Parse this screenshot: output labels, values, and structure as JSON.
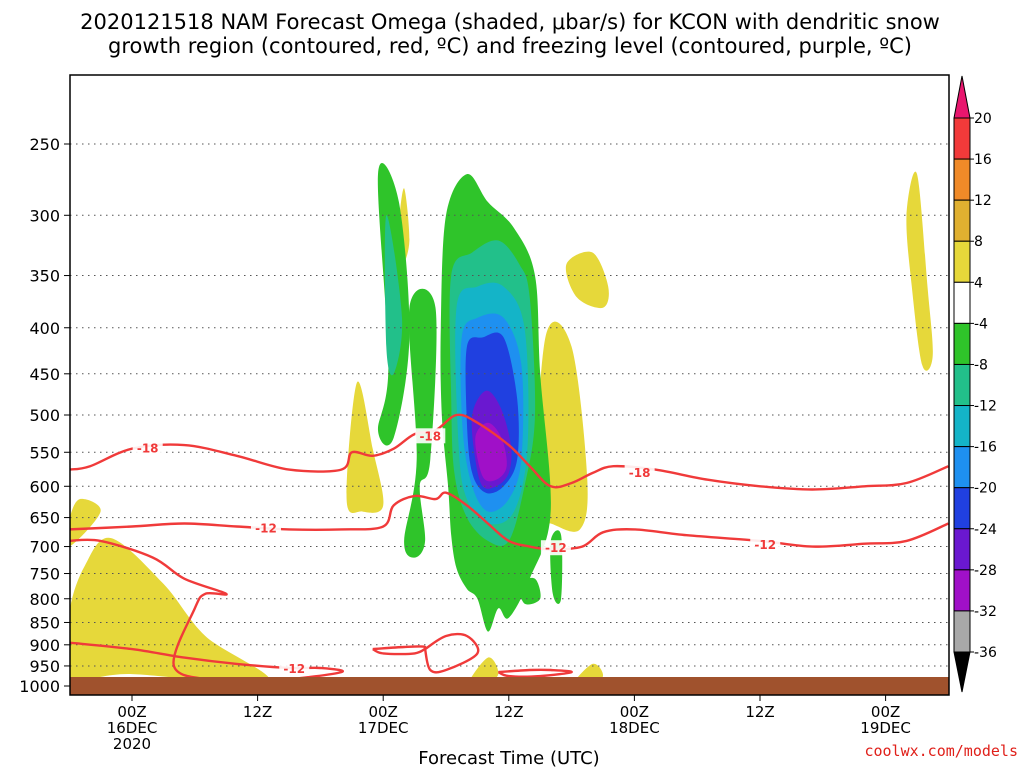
{
  "title": {
    "line1": "2020121518 NAM Forecast Omega (shaded, μbar/s) for KCON with dendritic snow",
    "line2": "growth region (contoured, red, ºC) and freezing level (contoured, purple, ºC)"
  },
  "credit": "coolwx.com/models",
  "chart_data": {
    "type": "heatmap",
    "title": "2020121518 NAM Forecast Omega (shaded, μbar/s) for KCON with dendritic snow growth region (contoured, red, ºC) and freezing level (contoured, purple, ºC)",
    "xlabel": "Forecast Time (UTC)",
    "ylabel": "",
    "y_scale": "log-pressure, inverted",
    "ylim": [
      1000,
      200
    ],
    "grid": true,
    "y_ticks": [
      250,
      300,
      350,
      400,
      450,
      500,
      550,
      600,
      650,
      700,
      750,
      800,
      850,
      900,
      950,
      1000
    ],
    "x_ticks": [
      {
        "hour": 0,
        "line1": "00Z",
        "line2": "16DEC",
        "line3": "2020"
      },
      {
        "hour": 12,
        "line1": "12Z",
        "line2": "",
        "line3": ""
      },
      {
        "hour": 24,
        "line1": "00Z",
        "line2": "17DEC",
        "line3": ""
      },
      {
        "hour": 36,
        "line1": "12Z",
        "line2": "",
        "line3": ""
      },
      {
        "hour": 48,
        "line1": "00Z",
        "line2": "18DEC",
        "line3": ""
      },
      {
        "hour": 60,
        "line1": "12Z",
        "line2": "",
        "line3": ""
      },
      {
        "hour": 72,
        "line1": "00Z",
        "line2": "19DEC",
        "line3": ""
      }
    ],
    "xlim_hours": [
      -6,
      78
    ],
    "colorbar": {
      "labels": [
        "20",
        "16",
        "12",
        "8",
        "4",
        "-4",
        "-8",
        "-12",
        "-16",
        "-20",
        "-24",
        "-28",
        "-32",
        "-36"
      ],
      "colors": [
        "#e8166e",
        "#f23a3a",
        "#f08a28",
        "#e0b030",
        "#e6d83a",
        "#ffffff",
        "#2fc42a",
        "#22c08a",
        "#14b4c8",
        "#1e90f0",
        "#2040e0",
        "#6a18d0",
        "#a010c8",
        "#a8a8a8",
        "#000000"
      ]
    },
    "omega_regions": [
      {
        "category": "4 to 8",
        "color": "#e6d83a",
        "points": [
          [
            -6,
            830
          ],
          [
            -4.5,
            735
          ],
          [
            -2,
            685
          ],
          [
            3,
            770
          ],
          [
            7,
            880
          ],
          [
            13,
            990
          ],
          [
            0,
            970
          ],
          [
            -6,
            975
          ]
        ]
      },
      {
        "category": "4 to 8",
        "color": "#e6d83a",
        "points": [
          [
            -6,
            655
          ],
          [
            -5,
            620
          ],
          [
            -3,
            640
          ],
          [
            -6,
            700
          ]
        ]
      },
      {
        "category": "4 to 8",
        "color": "#e6d83a",
        "points": [
          [
            20.5,
            620
          ],
          [
            21.5,
            460
          ],
          [
            23,
            545
          ],
          [
            24,
            630
          ],
          [
            22,
            640
          ]
        ]
      },
      {
        "category": "4 to 8",
        "color": "#e6d83a",
        "points": [
          [
            25.5,
            310
          ],
          [
            26,
            280
          ],
          [
            26.5,
            320
          ],
          [
            25.8,
            340
          ]
        ]
      },
      {
        "category": "4 to 8",
        "color": "#e6d83a",
        "points": [
          [
            41.5,
            340
          ],
          [
            44,
            330
          ],
          [
            45.5,
            360
          ],
          [
            45,
            380
          ],
          [
            42.5,
            370
          ]
        ]
      },
      {
        "category": "4 to 8",
        "color": "#e6d83a",
        "points": [
          [
            38.5,
            650
          ],
          [
            39.5,
            410
          ],
          [
            42,
            420
          ],
          [
            43.5,
            590
          ],
          [
            42.8,
            670
          ],
          [
            40,
            660
          ]
        ]
      },
      {
        "category": "4 to 8",
        "color": "#e6d83a",
        "points": [
          [
            74,
            300
          ],
          [
            75,
            270
          ],
          [
            76,
            360
          ],
          [
            76.5,
            430
          ],
          [
            75.5,
            440
          ],
          [
            74.5,
            360
          ]
        ]
      },
      {
        "category": "4 to 8",
        "color": "#e6d83a",
        "points": [
          [
            32,
            1000
          ],
          [
            34,
            930
          ],
          [
            35,
            970
          ],
          [
            33.5,
            1000
          ]
        ]
      },
      {
        "category": "4 to 8",
        "color": "#e6d83a",
        "points": [
          [
            42,
            1000
          ],
          [
            44,
            945
          ],
          [
            45,
            975
          ],
          [
            43.5,
            1000
          ]
        ]
      },
      {
        "category": "-4 to -8",
        "color": "#2fc42a",
        "points": [
          [
            23.5,
            270
          ],
          [
            25.5,
            290
          ],
          [
            26.5,
            410
          ],
          [
            25,
            530
          ],
          [
            23.5,
            520
          ],
          [
            24.5,
            440
          ]
        ]
      },
      {
        "category": "-4 to -8",
        "color": "#2fc42a",
        "points": [
          [
            26.5,
            380
          ],
          [
            29,
            380
          ],
          [
            28.5,
            560
          ],
          [
            27.5,
            600
          ],
          [
            28,
            690
          ],
          [
            27,
            720
          ],
          [
            26,
            690
          ],
          [
            27.2,
            560
          ]
        ]
      },
      {
        "category": "-4 to -8",
        "color": "#2fc42a",
        "points": [
          [
            30,
            300
          ],
          [
            32,
            270
          ],
          [
            34,
            290
          ],
          [
            36.5,
            310
          ],
          [
            38.5,
            350
          ],
          [
            39,
            450
          ],
          [
            40,
            640
          ],
          [
            38,
            760
          ],
          [
            36,
            840
          ],
          [
            35,
            820
          ],
          [
            34,
            870
          ],
          [
            33,
            800
          ],
          [
            32,
            780
          ],
          [
            31,
            740
          ],
          [
            30.5,
            680
          ],
          [
            30.2,
            600
          ],
          [
            29.6,
            500
          ],
          [
            29.5,
            400
          ]
        ]
      },
      {
        "category": "-4 to -8",
        "color": "#2fc42a",
        "points": [
          [
            37,
            770
          ],
          [
            38.5,
            760
          ],
          [
            39,
            800
          ],
          [
            37.5,
            810
          ]
        ]
      },
      {
        "category": "-4 to -8",
        "color": "#2fc42a",
        "points": [
          [
            40,
            690
          ],
          [
            41,
            680
          ],
          [
            41,
            800
          ],
          [
            40.2,
            790
          ]
        ]
      },
      {
        "category": "-4 to -12",
        "color": "#22c08a",
        "points": [
          [
            24.3,
            300
          ],
          [
            25.8,
            390
          ],
          [
            25,
            450
          ],
          [
            24.3,
            420
          ]
        ]
      },
      {
        "category": "-8 to -12",
        "color": "#22c08a",
        "points": [
          [
            30.5,
            350
          ],
          [
            32.5,
            330
          ],
          [
            35,
            320
          ],
          [
            37,
            340
          ],
          [
            38,
            370
          ],
          [
            38.5,
            500
          ],
          [
            37.5,
            600
          ],
          [
            36,
            690
          ],
          [
            34,
            690
          ],
          [
            32,
            650
          ],
          [
            30.8,
            580
          ],
          [
            30.5,
            480
          ]
        ]
      },
      {
        "category": "-12 to -16",
        "color": "#14b4c8",
        "points": [
          [
            31,
            380
          ],
          [
            33,
            360
          ],
          [
            35.5,
            360
          ],
          [
            37.5,
            400
          ],
          [
            37.8,
            540
          ],
          [
            36.5,
            640
          ],
          [
            34,
            660
          ],
          [
            32,
            620
          ],
          [
            31.2,
            540
          ]
        ]
      },
      {
        "category": "-16 to -20",
        "color": "#1e90f0",
        "points": [
          [
            31.5,
            410
          ],
          [
            33,
            390
          ],
          [
            35.5,
            390
          ],
          [
            37.2,
            440
          ],
          [
            37.2,
            560
          ],
          [
            36,
            620
          ],
          [
            34,
            640
          ],
          [
            32.5,
            600
          ],
          [
            31.6,
            520
          ]
        ]
      },
      {
        "category": "-20 to -24",
        "color": "#2040e0",
        "points": [
          [
            32,
            420
          ],
          [
            33.5,
            410
          ],
          [
            35.5,
            410
          ],
          [
            36.8,
            480
          ],
          [
            36.8,
            560
          ],
          [
            35.5,
            600
          ],
          [
            33.8,
            610
          ],
          [
            32.5,
            580
          ],
          [
            32,
            510
          ]
        ]
      },
      {
        "category": "-24 to -28",
        "color": "#6a18d0",
        "points": [
          [
            32.5,
            500
          ],
          [
            33.8,
            470
          ],
          [
            35.2,
            490
          ],
          [
            36.2,
            540
          ],
          [
            36,
            580
          ],
          [
            34.8,
            600
          ],
          [
            33.5,
            600
          ],
          [
            32.8,
            560
          ]
        ]
      },
      {
        "category": "-28 to -32",
        "color": "#a010c8",
        "points": [
          [
            32.8,
            530
          ],
          [
            34,
            510
          ],
          [
            35.3,
            530
          ],
          [
            35.8,
            570
          ],
          [
            34.8,
            590
          ],
          [
            33.5,
            585
          ]
        ]
      }
    ],
    "dgz_contours": [
      {
        "label": "-18",
        "points": [
          [
            -6,
            575
          ],
          [
            -4,
            570
          ],
          [
            0,
            545
          ],
          [
            5,
            540
          ],
          [
            10,
            555
          ],
          [
            15,
            575
          ],
          [
            20,
            575
          ],
          [
            21,
            550
          ],
          [
            23,
            555
          ],
          [
            25,
            545
          ],
          [
            27,
            525
          ],
          [
            29,
            520
          ],
          [
            31,
            500
          ],
          [
            33,
            510
          ],
          [
            36,
            540
          ],
          [
            38,
            570
          ],
          [
            40,
            600
          ],
          [
            42,
            595
          ],
          [
            44,
            580
          ],
          [
            46,
            570
          ],
          [
            50,
            575
          ],
          [
            55,
            590
          ],
          [
            60,
            600
          ],
          [
            65,
            605
          ],
          [
            70,
            600
          ],
          [
            74,
            595
          ],
          [
            78,
            570
          ]
        ]
      },
      {
        "label": "-12",
        "points": [
          [
            -6,
            670
          ],
          [
            0,
            665
          ],
          [
            5,
            660
          ],
          [
            10,
            665
          ],
          [
            15,
            670
          ],
          [
            20,
            670
          ],
          [
            24,
            665
          ],
          [
            25,
            630
          ],
          [
            27,
            615
          ],
          [
            29,
            620
          ],
          [
            30,
            610
          ],
          [
            32,
            630
          ],
          [
            34,
            660
          ],
          [
            36,
            690
          ],
          [
            38,
            700
          ],
          [
            40,
            705
          ],
          [
            43,
            700
          ],
          [
            45,
            675
          ],
          [
            48,
            670
          ],
          [
            53,
            680
          ],
          [
            60,
            690
          ],
          [
            65,
            700
          ],
          [
            70,
            695
          ],
          [
            74,
            690
          ],
          [
            78,
            660
          ]
        ]
      },
      {
        "label": "-12",
        "points": [
          [
            -6,
            895
          ],
          [
            0,
            910
          ],
          [
            5,
            930
          ],
          [
            10,
            945
          ],
          [
            15,
            955
          ],
          [
            18,
            955
          ],
          [
            20,
            965
          ],
          [
            14,
            985
          ],
          [
            8,
            985
          ],
          [
            4,
            950
          ],
          [
            6,
            820
          ],
          [
            7,
            790
          ],
          [
            9,
            790
          ],
          [
            5,
            760
          ],
          [
            2,
            720
          ],
          [
            -3,
            690
          ],
          [
            -6,
            690
          ]
        ]
      },
      {
        "label": "",
        "points": [
          [
            23,
            910
          ],
          [
            26,
            905
          ],
          [
            28,
            905
          ],
          [
            27,
            920
          ],
          [
            24,
            920
          ],
          [
            23,
            910
          ]
        ]
      },
      {
        "label": "",
        "points": [
          [
            28,
            910
          ],
          [
            30,
            880
          ],
          [
            32,
            880
          ],
          [
            33,
            920
          ],
          [
            30,
            960
          ],
          [
            28.5,
            960
          ],
          [
            28,
            910
          ]
        ]
      },
      {
        "label": "",
        "points": [
          [
            35,
            965
          ],
          [
            38,
            960
          ],
          [
            40,
            960
          ],
          [
            42,
            965
          ],
          [
            39,
            975
          ],
          [
            36,
            975
          ],
          [
            35,
            965
          ]
        ]
      },
      {
        "label": "",
        "points": [
          [
            60,
            990
          ],
          [
            61,
            992
          ]
        ]
      }
    ]
  }
}
